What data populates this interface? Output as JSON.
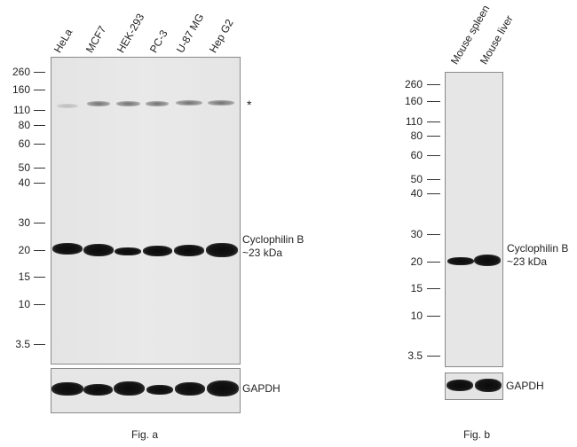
{
  "figA": {
    "lanes": [
      "HeLa",
      "MCF7",
      "HEK-293",
      "PC-3",
      "U-87 MG",
      "Hep G2"
    ],
    "mw_markers": [
      "260",
      "160",
      "110",
      "80",
      "60",
      "50",
      "40",
      "30",
      "20",
      "15",
      "10",
      "3.5"
    ],
    "asterisk": "*",
    "band_label_line1": "Cyclophilin B",
    "band_label_line2": "~23 kDa",
    "loading_label": "GAPDH",
    "caption": "Fig. a"
  },
  "figB": {
    "lanes": [
      "Mouse spleen",
      "Mouse liver"
    ],
    "mw_markers": [
      "260",
      "160",
      "110",
      "80",
      "60",
      "50",
      "40",
      "30",
      "20",
      "15",
      "10",
      "3.5"
    ],
    "band_label_line1": "Cyclophilin B",
    "band_label_line2": "~23 kDa",
    "loading_label": "GAPDH",
    "caption": "Fig. b"
  }
}
